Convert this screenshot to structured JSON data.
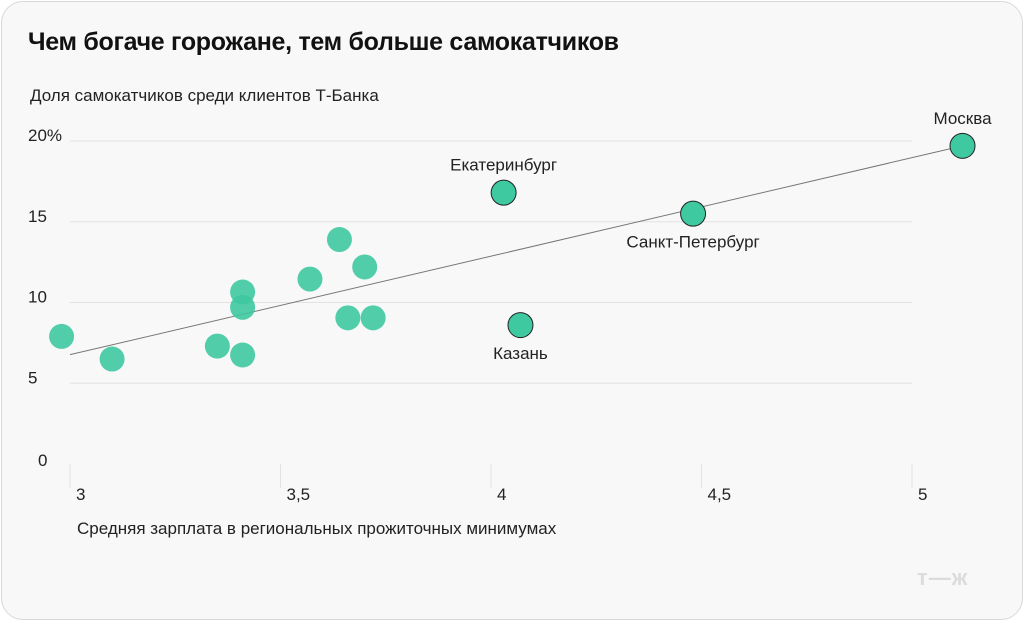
{
  "chart_data": {
    "type": "scatter",
    "title": "Чем богаче горожане, тем больше самокатчиков",
    "ylabel": "Доля самокатчиков среди клиентов Т-Банка",
    "xlabel": "Средняя зарплата в региональных прожиточных минимумах",
    "xlim": [
      3,
      5
    ],
    "ylim": [
      0,
      20
    ],
    "xticks": [
      {
        "v": 3,
        "label": "3"
      },
      {
        "v": 3.5,
        "label": "3,5"
      },
      {
        "v": 4,
        "label": "4"
      },
      {
        "v": 4.5,
        "label": "4,5"
      },
      {
        "v": 5,
        "label": "5"
      }
    ],
    "yticks": [
      {
        "v": 0,
        "label": "0"
      },
      {
        "v": 5,
        "label": "5"
      },
      {
        "v": 10,
        "label": "10"
      },
      {
        "v": 15,
        "label": "15"
      },
      {
        "v": 20,
        "label": "20%"
      }
    ],
    "grid": true,
    "point_color": "#3ec9a0",
    "points": [
      {
        "x": 2.98,
        "y": 7.9
      },
      {
        "x": 3.1,
        "y": 6.5
      },
      {
        "x": 3.35,
        "y": 7.3
      },
      {
        "x": 3.41,
        "y": 6.75
      },
      {
        "x": 3.41,
        "y": 10.65
      },
      {
        "x": 3.41,
        "y": 9.7
      },
      {
        "x": 3.57,
        "y": 11.45
      },
      {
        "x": 3.64,
        "y": 13.9
      },
      {
        "x": 3.7,
        "y": 12.2
      },
      {
        "x": 3.66,
        "y": 9.05
      },
      {
        "x": 3.72,
        "y": 9.05
      },
      {
        "x": 4.03,
        "y": 16.8,
        "label": "Екатеринбург",
        "pos": "above"
      },
      {
        "x": 4.07,
        "y": 8.6,
        "label": "Казань",
        "pos": "below"
      },
      {
        "x": 4.48,
        "y": 15.5,
        "label": "Санкт-Петербург",
        "pos": "below"
      },
      {
        "x": 5.12,
        "y": 19.7,
        "label": "Москва",
        "pos": "above"
      }
    ],
    "trendline": {
      "x": [
        3,
        5.12
      ],
      "y": [
        6.77,
        19.7
      ]
    }
  },
  "logo": "т—ж"
}
